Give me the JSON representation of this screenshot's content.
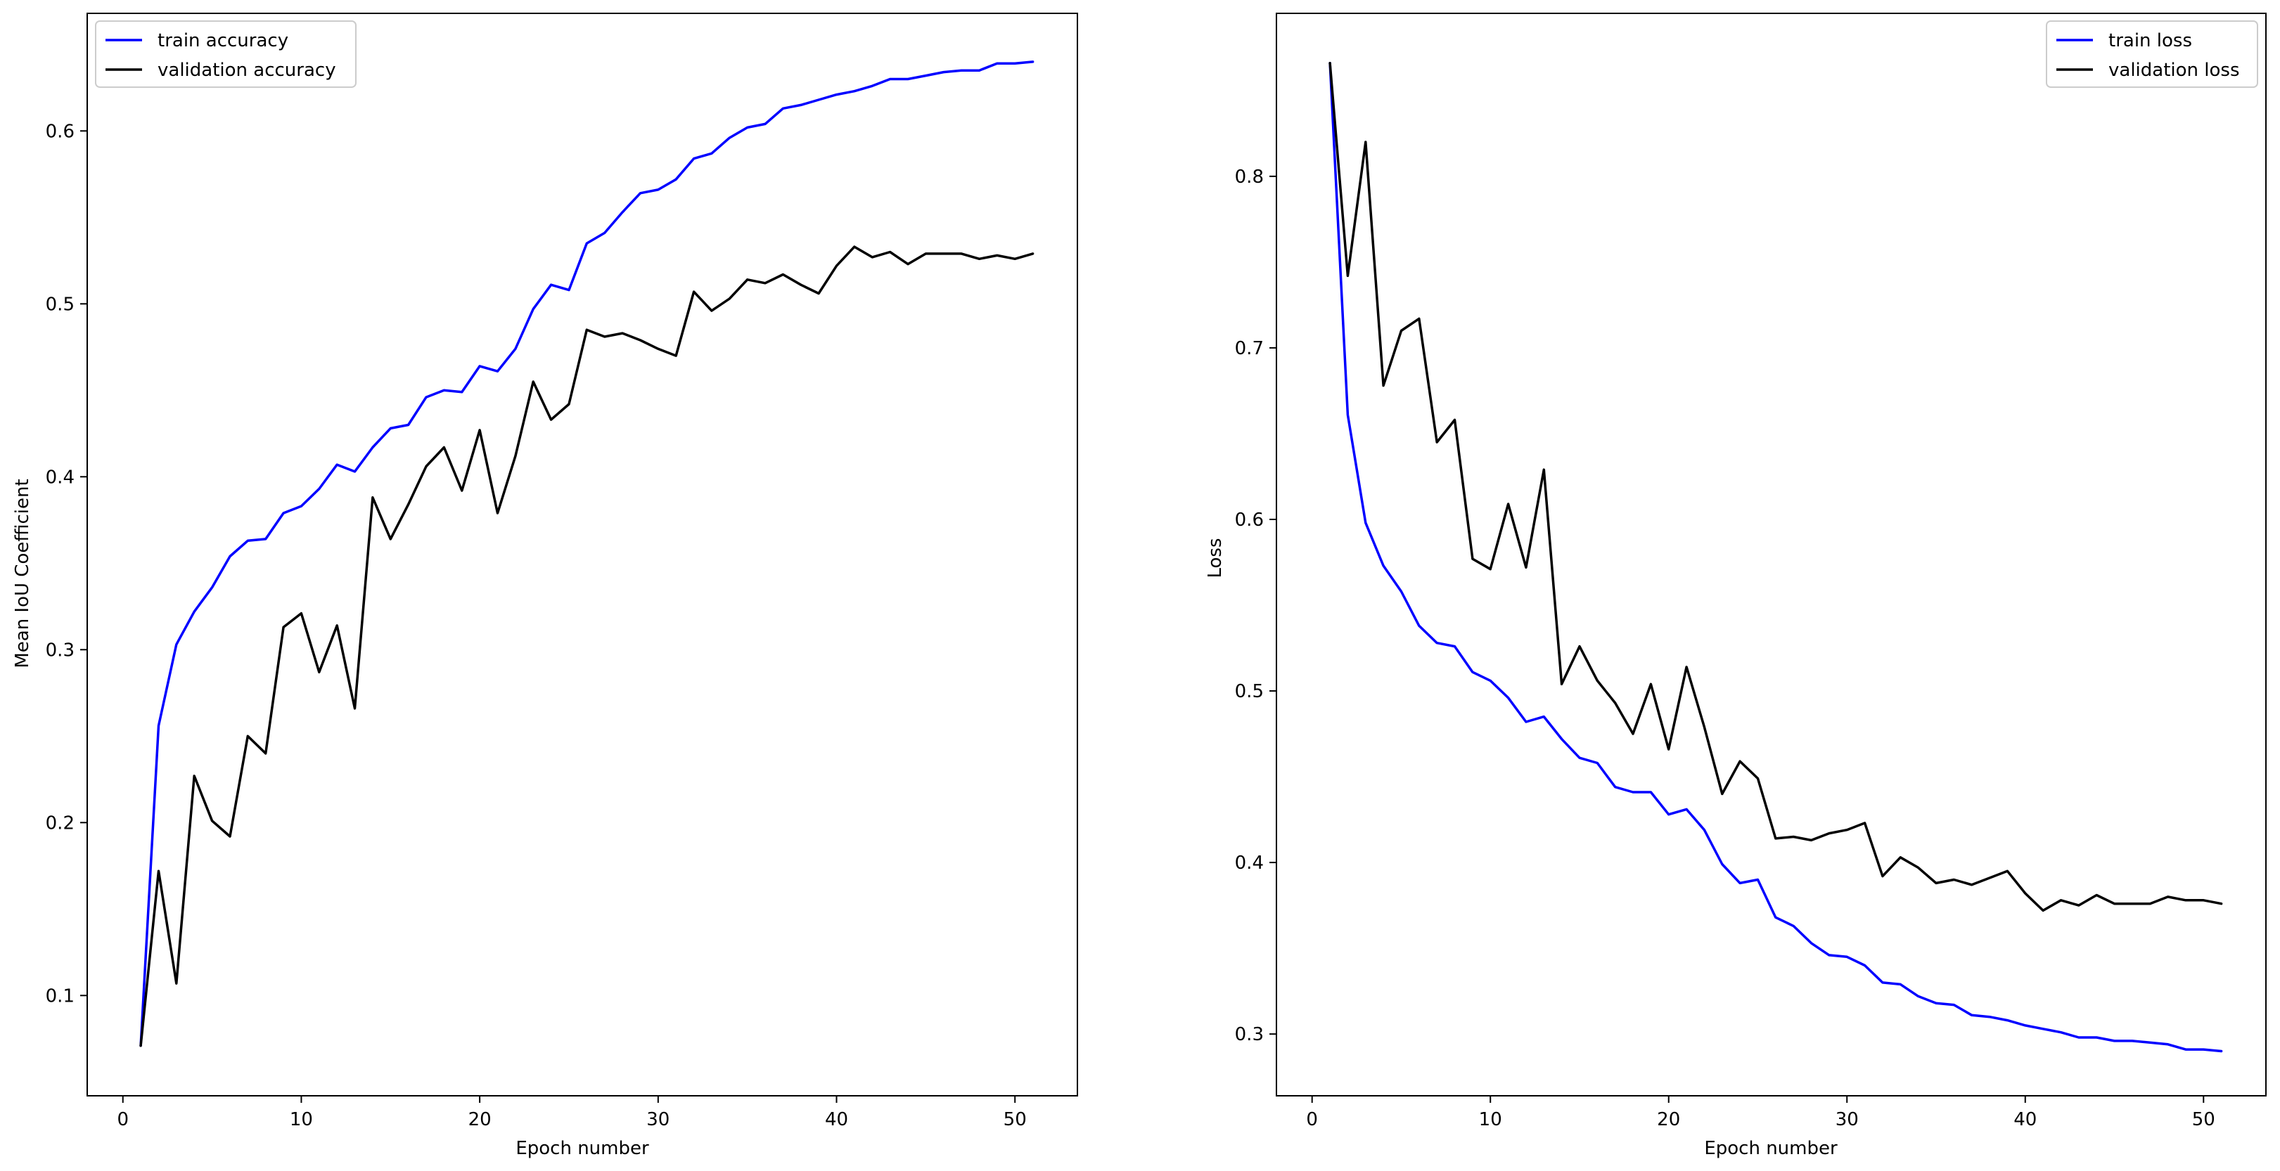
{
  "chart_data": [
    {
      "type": "line",
      "title": "",
      "xlabel": "Epoch number",
      "ylabel": "Mean IoU Coefficient",
      "xlim": [
        -2,
        53.5
      ],
      "ylim": [
        0.042,
        0.668
      ],
      "xticks": [
        0,
        10,
        20,
        30,
        40,
        50
      ],
      "yticks": [
        0.1,
        0.2,
        0.3,
        0.4,
        0.5,
        0.6
      ],
      "grid": false,
      "legend": "top-left",
      "x": [
        1,
        2,
        3,
        4,
        5,
        6,
        7,
        8,
        9,
        10,
        11,
        12,
        13,
        14,
        15,
        16,
        17,
        18,
        19,
        20,
        21,
        22,
        23,
        24,
        25,
        26,
        27,
        28,
        29,
        30,
        31,
        32,
        33,
        34,
        35,
        36,
        37,
        38,
        39,
        40,
        41,
        42,
        43,
        44,
        45,
        46,
        47,
        48,
        49,
        50,
        51
      ],
      "series": [
        {
          "name": "train accuracy",
          "color": "#0000ff",
          "values": [
            0.071,
            0.256,
            0.303,
            0.322,
            0.336,
            0.354,
            0.363,
            0.364,
            0.379,
            0.383,
            0.393,
            0.407,
            0.403,
            0.417,
            0.428,
            0.43,
            0.446,
            0.45,
            0.449,
            0.464,
            0.461,
            0.474,
            0.497,
            0.511,
            0.508,
            0.535,
            0.541,
            0.553,
            0.564,
            0.566,
            0.572,
            0.584,
            0.587,
            0.596,
            0.602,
            0.604,
            0.613,
            0.615,
            0.618,
            0.621,
            0.623,
            0.626,
            0.63,
            0.63,
            0.632,
            0.634,
            0.635,
            0.635,
            0.639,
            0.639,
            0.64
          ]
        },
        {
          "name": "validation accuracy",
          "color": "#000000",
          "values": [
            0.071,
            0.172,
            0.107,
            0.227,
            0.201,
            0.192,
            0.25,
            0.24,
            0.313,
            0.321,
            0.287,
            0.314,
            0.266,
            0.388,
            0.364,
            0.384,
            0.406,
            0.417,
            0.392,
            0.427,
            0.379,
            0.412,
            0.455,
            0.433,
            0.442,
            0.485,
            0.481,
            0.483,
            0.479,
            0.474,
            0.47,
            0.507,
            0.496,
            0.503,
            0.514,
            0.512,
            0.517,
            0.511,
            0.506,
            0.522,
            0.533,
            0.527,
            0.53,
            0.523,
            0.529,
            0.529,
            0.529,
            0.526,
            0.528,
            0.526,
            0.529
          ]
        }
      ]
    },
    {
      "type": "line",
      "title": "",
      "xlabel": "Epoch number",
      "ylabel": "Loss",
      "xlim": [
        -2,
        53.5
      ],
      "ylim": [
        0.264,
        0.895
      ],
      "xticks": [
        0,
        10,
        20,
        30,
        40,
        50
      ],
      "yticks": [
        0.3,
        0.4,
        0.5,
        0.6,
        0.7,
        0.8
      ],
      "grid": false,
      "legend": "top-right",
      "x": [
        1,
        2,
        3,
        4,
        5,
        6,
        7,
        8,
        9,
        10,
        11,
        12,
        13,
        14,
        15,
        16,
        17,
        18,
        19,
        20,
        21,
        22,
        23,
        24,
        25,
        26,
        27,
        28,
        29,
        30,
        31,
        32,
        33,
        34,
        35,
        36,
        37,
        38,
        39,
        40,
        41,
        42,
        43,
        44,
        45,
        46,
        47,
        48,
        49,
        50,
        51
      ],
      "series": [
        {
          "name": "train loss",
          "color": "#0000ff",
          "values": [
            0.866,
            0.661,
            0.598,
            0.573,
            0.558,
            0.538,
            0.528,
            0.526,
            0.511,
            0.506,
            0.496,
            0.482,
            0.485,
            0.472,
            0.461,
            0.458,
            0.444,
            0.441,
            0.441,
            0.428,
            0.431,
            0.419,
            0.399,
            0.388,
            0.39,
            0.368,
            0.363,
            0.353,
            0.346,
            0.345,
            0.34,
            0.33,
            0.329,
            0.322,
            0.318,
            0.317,
            0.311,
            0.31,
            0.308,
            0.305,
            0.303,
            0.301,
            0.298,
            0.298,
            0.296,
            0.296,
            0.295,
            0.294,
            0.291,
            0.291,
            0.29
          ]
        },
        {
          "name": "validation loss",
          "color": "#000000",
          "values": [
            0.866,
            0.742,
            0.82,
            0.678,
            0.71,
            0.717,
            0.645,
            0.658,
            0.577,
            0.571,
            0.609,
            0.572,
            0.629,
            0.504,
            0.526,
            0.506,
            0.493,
            0.475,
            0.504,
            0.466,
            0.514,
            0.479,
            0.44,
            0.459,
            0.449,
            0.414,
            0.415,
            0.413,
            0.417,
            0.419,
            0.423,
            0.392,
            0.403,
            0.397,
            0.388,
            0.39,
            0.387,
            0.391,
            0.395,
            0.382,
            0.372,
            0.378,
            0.375,
            0.381,
            0.376,
            0.376,
            0.376,
            0.38,
            0.378,
            0.378,
            0.376
          ]
        }
      ]
    }
  ]
}
